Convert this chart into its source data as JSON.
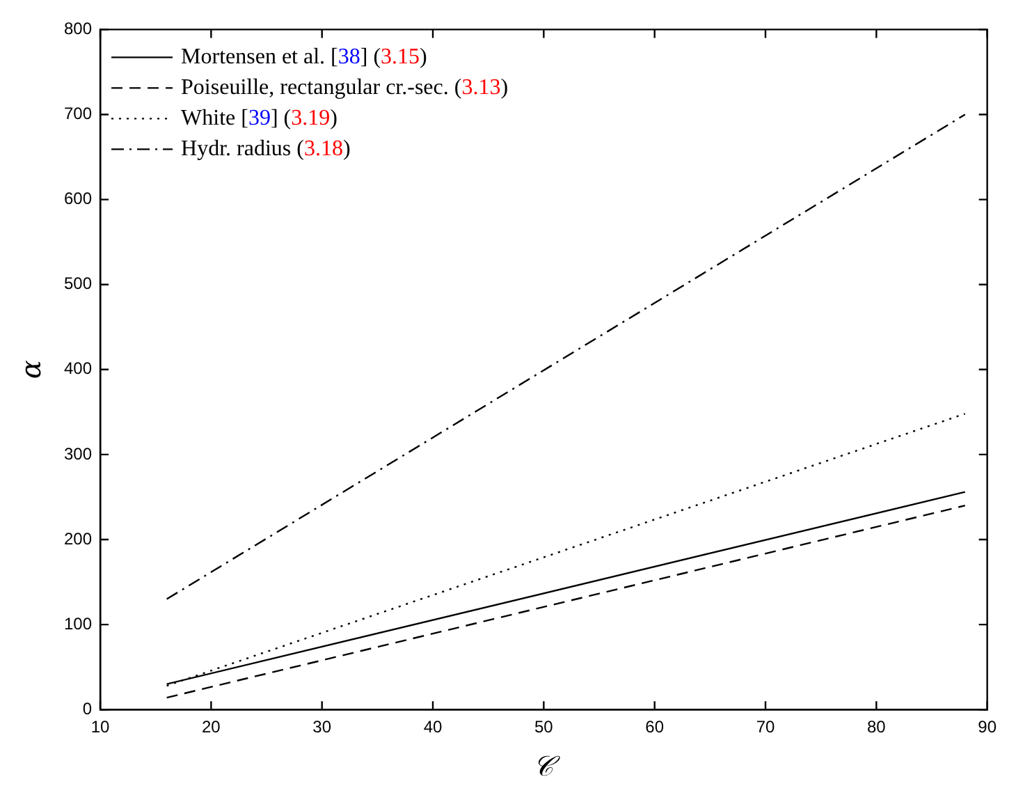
{
  "chart_data": {
    "type": "line",
    "xlabel": "𝒞",
    "ylabel": "α",
    "x": [
      16,
      88
    ],
    "xlim": [
      10,
      90
    ],
    "xticks": [
      10,
      20,
      30,
      40,
      50,
      60,
      70,
      80,
      90
    ],
    "ylim": [
      0,
      800
    ],
    "yticks": [
      0,
      100,
      200,
      300,
      400,
      500,
      600,
      700,
      800
    ],
    "grid": false,
    "legend": "top left",
    "marker": "none",
    "series": [
      {
        "name": "Mortensen et al. [38] (3.15)",
        "color": "#000000",
        "line_style": "solid",
        "values": [
          30,
          256
        ]
      },
      {
        "name": "Poiseuille, rectangular cr.-sec. (3.13)",
        "color": "#000000",
        "line_style": "dashed",
        "values": [
          14,
          240
        ]
      },
      {
        "name": "White [39] (3.19)",
        "color": "#000000",
        "line_style": "dotted",
        "values": [
          28,
          348
        ]
      },
      {
        "name": "Hydr. radius (3.18)",
        "color": "#000000",
        "line_style": "dashdot",
        "values": [
          130,
          700
        ]
      }
    ]
  }
}
